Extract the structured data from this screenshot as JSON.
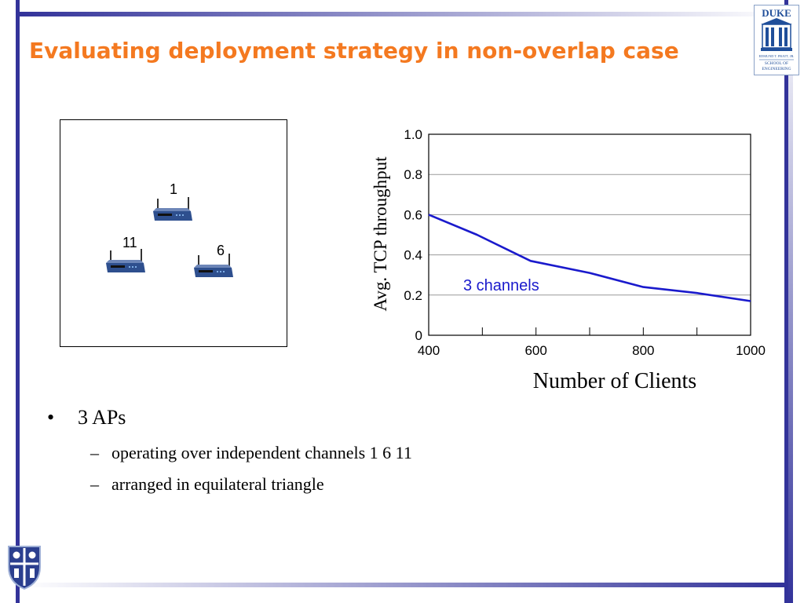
{
  "slide": {
    "title": "Evaluating deployment strategy in non-overlap case"
  },
  "logos": {
    "duke_top": "DUKE",
    "duke_sub1": "EDMUND T. PRATT, JR.",
    "duke_sub2": "SCHOOL OF",
    "duke_sub3": "ENGINEERING"
  },
  "diagram": {
    "ap_labels": [
      "1",
      "11",
      "6"
    ],
    "icon": "wireless-router-icon"
  },
  "chart_data": {
    "type": "line",
    "title": "",
    "xlabel": "Number of Clients",
    "ylabel": "Avg. TCP throughput",
    "xlim": [
      400,
      1000
    ],
    "ylim": [
      0,
      1.0
    ],
    "x_ticks": [
      400,
      600,
      800,
      1000
    ],
    "x_minor_ticks": [
      500,
      700,
      900
    ],
    "y_ticks": [
      "0",
      "0.2",
      "0.4",
      "0.6",
      "0.8",
      "1.0"
    ],
    "y_tick_values": [
      0,
      0.2,
      0.4,
      0.6,
      0.8,
      1.0
    ],
    "grid": "horizontal",
    "series": [
      {
        "name": "3 channels",
        "color": "#1a1acc",
        "x": [
          400,
          490,
          590,
          700,
          800,
          900,
          1000
        ],
        "y": [
          0.6,
          0.5,
          0.37,
          0.31,
          0.24,
          0.21,
          0.17
        ]
      }
    ]
  },
  "bullets": {
    "main": "3 APs",
    "bullet_symbol": "•",
    "dash_symbol": "–",
    "sub": [
      "operating over independent channels 1 6 11",
      "arranged in equilateral triangle"
    ]
  }
}
